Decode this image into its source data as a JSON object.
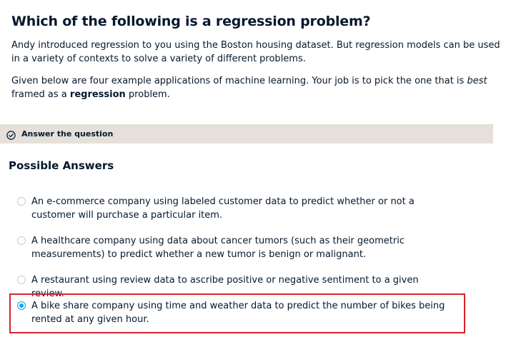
{
  "question": {
    "title": "Which of the following is a regression problem?",
    "paragraph1": "Andy introduced regression to you using the Boston housing dataset. But regression models can be used in a variety of contexts to solve a variety of different problems.",
    "paragraph2": {
      "part1": "Given below are four example applications of machine learning. Your job is to pick the one that is ",
      "emphasis": "best",
      "part2": " framed as a ",
      "strong": "regression",
      "part3": " problem."
    }
  },
  "instruction_bar": {
    "icon": "check-circle-icon",
    "label": "Answer the question"
  },
  "possible_answers": {
    "title": "Possible Answers",
    "selected_index": 3,
    "options": [
      {
        "text": "An e-commerce company using labeled customer data to predict whether or not a customer will purchase a particular item."
      },
      {
        "text": "A healthcare company using data about cancer tumors (such as their geometric measurements) to predict whether a new tumor is benign or malignant."
      },
      {
        "text": "A restaurant using review data to ascribe positive or negative sentiment to a given review."
      },
      {
        "text": "A bike share company using time and weather data to predict the number of bikes being rented at any given hour."
      }
    ]
  },
  "colors": {
    "text": "#05192d",
    "bar_background": "#e5e1da",
    "radio_selected": "#03a9f4",
    "highlight_border": "#d9232e"
  }
}
